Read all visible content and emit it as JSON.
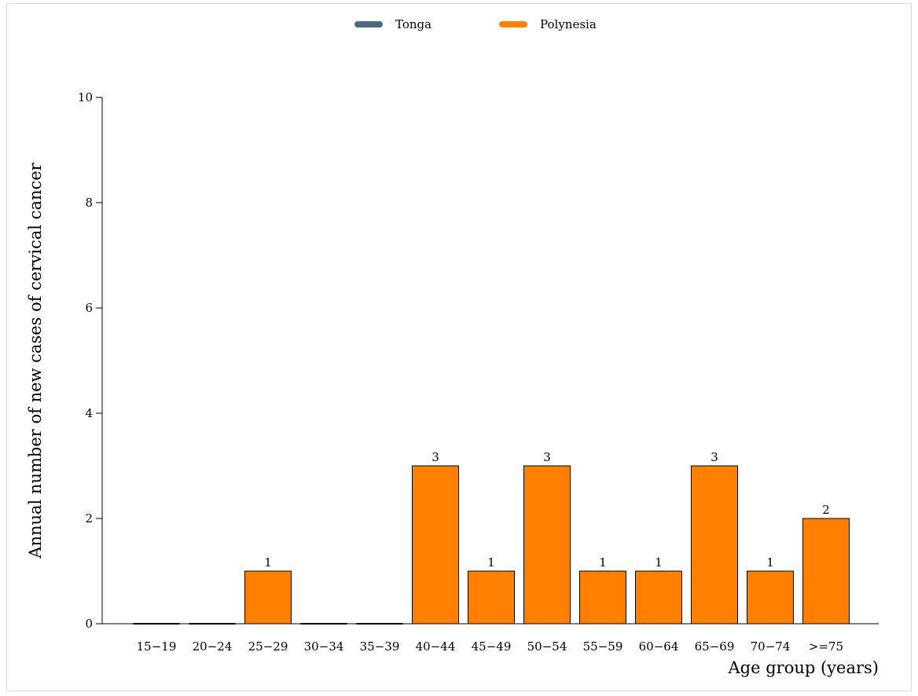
{
  "chart_data": {
    "type": "bar",
    "categories": [
      "15−19",
      "20−24",
      "25−29",
      "30−34",
      "35−39",
      "40−44",
      "45−49",
      "50−54",
      "55−59",
      "60−64",
      "65−69",
      "70−74",
      ">=75"
    ],
    "series": [
      {
        "name": "Tonga",
        "color": "#4a6a82",
        "values": [
          0,
          0,
          0,
          0,
          0,
          0,
          0,
          0,
          0,
          0,
          0,
          0,
          0
        ]
      },
      {
        "name": "Polynesia",
        "color": "#ff8000",
        "values": [
          0,
          0,
          1,
          0,
          0,
          3,
          1,
          3,
          1,
          1,
          3,
          1,
          2
        ]
      }
    ],
    "data_labels": [
      "",
      "",
      "1",
      "",
      "",
      "3",
      "1",
      "3",
      "1",
      "1",
      "3",
      "1",
      "2"
    ],
    "xlabel": "Age group (years)",
    "ylabel": "Annual number of new cases of cervical cancer",
    "ylim": [
      0,
      10
    ],
    "yticks": [
      "0",
      "2",
      "4",
      "6",
      "8",
      "10"
    ],
    "ytick_values": [
      0,
      2,
      4,
      6,
      8,
      10
    ],
    "legend_position": "top-center",
    "grid": false
  }
}
